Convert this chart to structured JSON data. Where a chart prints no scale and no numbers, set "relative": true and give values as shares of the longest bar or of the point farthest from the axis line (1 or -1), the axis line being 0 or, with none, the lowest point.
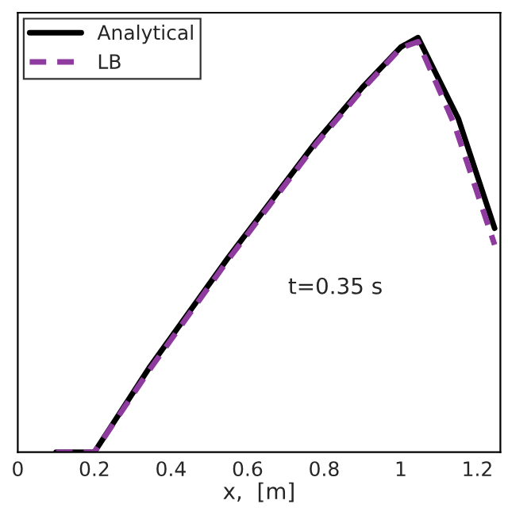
{
  "chart_data": {
    "type": "line",
    "xlabel": "x,  [m]",
    "relative": true,
    "xlim": [
      0,
      1.26
    ],
    "xticks": [
      0,
      0.2,
      0.4,
      0.6,
      0.8,
      1,
      1.2
    ],
    "tick_labels": "x",
    "grid": false,
    "legend": "top left",
    "annotations": [
      "t=0.35 s"
    ],
    "series": [
      {
        "name": "Analytical",
        "color": "#000000",
        "line_style": "solid",
        "x": [
          0.1,
          0.2,
          0.345,
          0.55,
          0.78,
          0.9,
          1.0,
          1.045,
          1.15,
          1.245
        ],
        "values": [
          0,
          0,
          0.206,
          0.47,
          0.75,
          0.88,
          0.977,
          1.0,
          0.805,
          0.54
        ]
      },
      {
        "name": "LB",
        "color": "#8e3a9e",
        "line_style": "dashed",
        "x": [
          0.1,
          0.2,
          0.345,
          0.55,
          0.78,
          0.9,
          1.0,
          1.045,
          1.14,
          1.245
        ],
        "values": [
          0,
          0,
          0.2,
          0.465,
          0.745,
          0.875,
          0.975,
          0.99,
          0.79,
          0.5
        ]
      }
    ]
  }
}
